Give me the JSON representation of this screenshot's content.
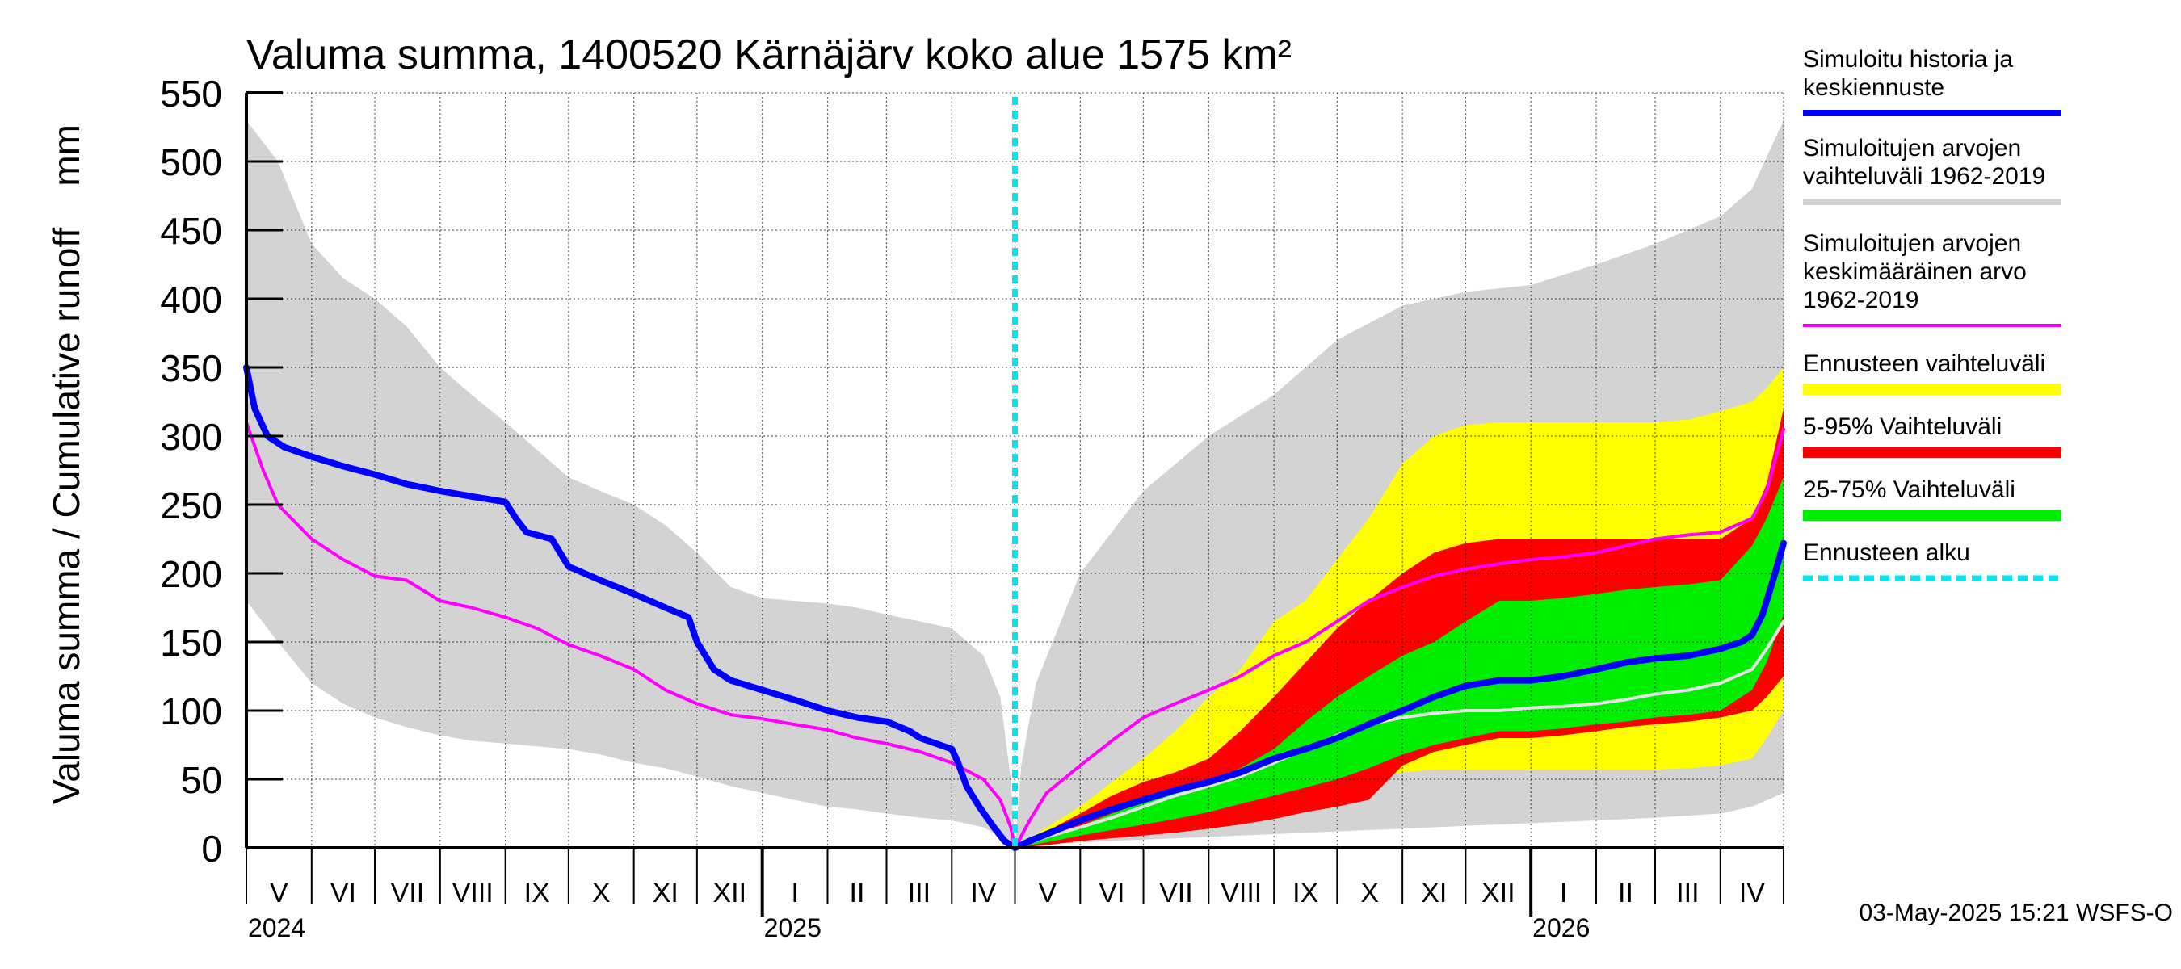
{
  "chart_data": {
    "type": "area",
    "title": "Valuma summa, 1400520 Kärnäjärv koko alue 1575 km²",
    "ylabel": "Valuma summa / Cumulative runoff    mm",
    "ylim": [
      0,
      550
    ],
    "yticks": [
      0,
      50,
      100,
      150,
      200,
      250,
      300,
      350,
      400,
      450,
      500,
      550
    ],
    "x_range_days": [
      0,
      730
    ],
    "forecast_start_day": 365,
    "months": [
      {
        "label": "V",
        "start": 0,
        "end": 31
      },
      {
        "label": "VI",
        "start": 31,
        "end": 61
      },
      {
        "label": "VII",
        "start": 61,
        "end": 92
      },
      {
        "label": "VIII",
        "start": 92,
        "end": 123
      },
      {
        "label": "IX",
        "start": 123,
        "end": 153
      },
      {
        "label": "X",
        "start": 153,
        "end": 184
      },
      {
        "label": "XI",
        "start": 184,
        "end": 214
      },
      {
        "label": "XII",
        "start": 214,
        "end": 245
      },
      {
        "label": "I",
        "start": 245,
        "end": 276
      },
      {
        "label": "II",
        "start": 276,
        "end": 304
      },
      {
        "label": "III",
        "start": 304,
        "end": 335
      },
      {
        "label": "IV",
        "start": 335,
        "end": 365
      },
      {
        "label": "V",
        "start": 365,
        "end": 396
      },
      {
        "label": "VI",
        "start": 396,
        "end": 426
      },
      {
        "label": "VII",
        "start": 426,
        "end": 457
      },
      {
        "label": "VIII",
        "start": 457,
        "end": 488
      },
      {
        "label": "IX",
        "start": 488,
        "end": 518
      },
      {
        "label": "X",
        "start": 518,
        "end": 549
      },
      {
        "label": "XI",
        "start": 549,
        "end": 579
      },
      {
        "label": "XII",
        "start": 579,
        "end": 610
      },
      {
        "label": "I",
        "start": 610,
        "end": 641
      },
      {
        "label": "II",
        "start": 641,
        "end": 669
      },
      {
        "label": "III",
        "start": 669,
        "end": 700
      },
      {
        "label": "IV",
        "start": 700,
        "end": 730
      }
    ],
    "years": [
      {
        "label": "2024",
        "day": 0
      },
      {
        "label": "2025",
        "day": 245
      },
      {
        "label": "2026",
        "day": 610
      }
    ],
    "series": [
      {
        "name": "Simuloitujen arvojen vaihteluväli 1962-2019",
        "kind": "band",
        "color": "#d3d3d3",
        "x": [
          0,
          15,
          31,
          46,
          61,
          76,
          92,
          107,
          123,
          138,
          153,
          168,
          184,
          199,
          214,
          230,
          245,
          260,
          276,
          290,
          304,
          320,
          335,
          350,
          358,
          363,
          365,
          368,
          375,
          396,
          426,
          457,
          488,
          518,
          549,
          579,
          610,
          641,
          669,
          700,
          715,
          730
        ],
        "upper": [
          530,
          500,
          440,
          415,
          400,
          380,
          350,
          330,
          310,
          290,
          270,
          260,
          250,
          235,
          215,
          190,
          182,
          180,
          178,
          175,
          170,
          165,
          160,
          140,
          110,
          50,
          2,
          60,
          120,
          200,
          260,
          300,
          330,
          370,
          395,
          405,
          410,
          425,
          440,
          460,
          480,
          530
        ],
        "lower": [
          180,
          150,
          120,
          105,
          95,
          88,
          82,
          78,
          76,
          74,
          72,
          68,
          62,
          58,
          52,
          45,
          40,
          35,
          30,
          28,
          25,
          22,
          20,
          15,
          8,
          3,
          0,
          1,
          2,
          4,
          6,
          8,
          10,
          12,
          14,
          16,
          18,
          20,
          22,
          25,
          30,
          40
        ]
      },
      {
        "name": "Ennusteen vaihteluväli",
        "kind": "band",
        "color": "#ffff00",
        "x": [
          365,
          380,
          396,
          411,
          426,
          441,
          457,
          472,
          488,
          503,
          518,
          533,
          549,
          564,
          579,
          595,
          610,
          625,
          641,
          655,
          669,
          685,
          700,
          715,
          722,
          730
        ],
        "upper": [
          0,
          15,
          30,
          48,
          65,
          85,
          110,
          130,
          165,
          180,
          210,
          240,
          280,
          300,
          308,
          310,
          310,
          310,
          310,
          310,
          310,
          312,
          318,
          325,
          335,
          350
        ],
        "lower": [
          0,
          3,
          6,
          9,
          12,
          15,
          18,
          21,
          25,
          30,
          40,
          50,
          55,
          57,
          57,
          57,
          57,
          57,
          57,
          57,
          57,
          58,
          60,
          65,
          80,
          100
        ]
      },
      {
        "name": "5-95% Vaihteluväli",
        "kind": "band",
        "color": "#ff0000",
        "x": [
          365,
          380,
          396,
          411,
          426,
          441,
          457,
          472,
          488,
          503,
          518,
          533,
          549,
          564,
          579,
          595,
          610,
          625,
          641,
          655,
          669,
          685,
          700,
          715,
          722,
          730
        ],
        "upper": [
          0,
          12,
          25,
          38,
          48,
          55,
          65,
          85,
          110,
          135,
          160,
          180,
          200,
          215,
          222,
          225,
          225,
          225,
          225,
          225,
          225,
          225,
          225,
          240,
          265,
          320
        ],
        "lower": [
          0,
          2,
          5,
          7,
          9,
          11,
          14,
          17,
          21,
          26,
          30,
          35,
          60,
          70,
          75,
          80,
          80,
          82,
          85,
          88,
          90,
          92,
          95,
          100,
          110,
          125
        ]
      },
      {
        "name": "25-75% Vaihteluväli",
        "kind": "band",
        "color": "#00ee00",
        "x": [
          365,
          380,
          396,
          411,
          426,
          441,
          457,
          472,
          488,
          503,
          518,
          533,
          549,
          564,
          579,
          595,
          610,
          625,
          641,
          655,
          669,
          685,
          700,
          715,
          722,
          730
        ],
        "upper": [
          0,
          8,
          16,
          25,
          33,
          40,
          48,
          58,
          72,
          92,
          110,
          125,
          140,
          150,
          165,
          180,
          180,
          182,
          185,
          188,
          190,
          192,
          195,
          220,
          240,
          270
        ],
        "lower": [
          0,
          4,
          9,
          13,
          17,
          21,
          26,
          32,
          38,
          44,
          50,
          58,
          68,
          75,
          80,
          85,
          85,
          87,
          90,
          92,
          95,
          97,
          100,
          115,
          135,
          170
        ]
      },
      {
        "name": "Ennusteen mediaani",
        "kind": "line",
        "color": "#e4e4e4",
        "x": [
          365,
          380,
          396,
          411,
          426,
          441,
          457,
          472,
          488,
          503,
          518,
          533,
          549,
          564,
          579,
          595,
          610,
          625,
          641,
          655,
          669,
          685,
          700,
          715,
          722,
          730
        ],
        "values": [
          0,
          8,
          15,
          22,
          30,
          38,
          45,
          52,
          62,
          72,
          82,
          90,
          95,
          98,
          100,
          100,
          102,
          103,
          105,
          108,
          112,
          115,
          120,
          130,
          145,
          165
        ]
      },
      {
        "name": "Simuloitujen arvojen keskimääräinen arvo 1962-2019",
        "kind": "line",
        "color": "#ff00ff",
        "x": [
          0,
          8,
          15,
          31,
          46,
          61,
          76,
          92,
          107,
          123,
          138,
          153,
          168,
          184,
          199,
          214,
          230,
          245,
          260,
          276,
          290,
          304,
          320,
          335,
          350,
          358,
          363,
          365,
          372,
          380,
          396,
          411,
          426,
          441,
          457,
          472,
          488,
          503,
          518,
          533,
          549,
          564,
          579,
          595,
          610,
          625,
          641,
          655,
          669,
          685,
          700,
          715,
          722,
          730
        ],
        "values": [
          310,
          275,
          250,
          225,
          210,
          198,
          195,
          180,
          175,
          168,
          160,
          148,
          140,
          130,
          115,
          105,
          97,
          94,
          90,
          86,
          80,
          76,
          70,
          62,
          50,
          35,
          15,
          0,
          20,
          40,
          60,
          78,
          95,
          105,
          115,
          125,
          140,
          150,
          165,
          180,
          190,
          198,
          203,
          207,
          210,
          212,
          215,
          220,
          225,
          228,
          230,
          240,
          260,
          305
        ]
      },
      {
        "name": "Simuloitu historia ja keskiennuste",
        "kind": "line",
        "color": "#0000ff",
        "x": [
          0,
          4,
          10,
          18,
          31,
          46,
          61,
          76,
          92,
          107,
          123,
          128,
          133,
          145,
          153,
          168,
          184,
          199,
          210,
          214,
          222,
          230,
          245,
          260,
          276,
          290,
          304,
          315,
          320,
          335,
          338,
          342,
          348,
          355,
          360,
          365,
          372,
          380,
          396,
          411,
          426,
          441,
          457,
          472,
          488,
          503,
          518,
          533,
          549,
          564,
          579,
          595,
          610,
          625,
          641,
          655,
          669,
          685,
          700,
          710,
          715,
          720,
          725,
          730
        ],
        "values": [
          350,
          320,
          300,
          292,
          285,
          278,
          272,
          265,
          260,
          256,
          252,
          240,
          230,
          225,
          205,
          195,
          185,
          175,
          168,
          150,
          130,
          122,
          115,
          108,
          100,
          95,
          92,
          85,
          80,
          72,
          62,
          45,
          30,
          15,
          5,
          0,
          5,
          10,
          20,
          28,
          35,
          42,
          48,
          55,
          65,
          72,
          80,
          90,
          100,
          110,
          118,
          122,
          122,
          125,
          130,
          135,
          138,
          140,
          145,
          150,
          155,
          170,
          195,
          222
        ]
      }
    ],
    "legend": [
      {
        "text": "Simuloitu historia ja\nkeskiennuste",
        "color": "#0000ff",
        "style": "solid"
      },
      {
        "text": "Simuloitujen arvojen\nvaihteluväli 1962-2019",
        "color": "#d3d3d3",
        "style": "solid"
      },
      {
        "text": "Simuloitujen arvojen\nkeskimääräinen arvo\n   1962-2019",
        "color": "#ff00ff",
        "style": "thin"
      },
      {
        "text": "Ennusteen vaihteluväli",
        "color": "#ffff00",
        "style": "thick"
      },
      {
        "text": "5-95% Vaihteluväli",
        "color": "#ff0000",
        "style": "thick"
      },
      {
        "text": "25-75% Vaihteluväli",
        "color": "#00ee00",
        "style": "thick"
      },
      {
        "text": "Ennusteen alku",
        "color": "#00e5ee",
        "style": "dashed"
      }
    ],
    "footer": "03-May-2025 15:21 WSFS-O"
  }
}
